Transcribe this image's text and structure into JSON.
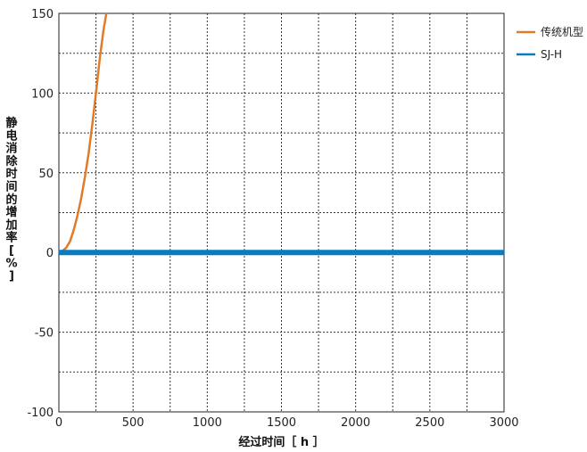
{
  "chart_data": {
    "type": "line",
    "title": "",
    "xlabel": "经过时间［ h ］",
    "ylabel": "静电消除时间的增加率[%]",
    "xlim": [
      0,
      3000
    ],
    "ylim": [
      -100,
      150
    ],
    "x_ticks": [
      "0",
      "500",
      "1000",
      "1500",
      "2000",
      "2500",
      "3000"
    ],
    "y_ticks": [
      "150",
      "100",
      "50",
      "0",
      "-50",
      "-100"
    ],
    "grid": true,
    "legend_position": "top-right",
    "series": [
      {
        "name": "传统机型",
        "color": "#e07b2a",
        "x": [
          0,
          25,
          50,
          75,
          100,
          125,
          150,
          175,
          200,
          225,
          250,
          275,
          300,
          320
        ],
        "y": [
          0,
          1,
          3,
          7,
          14,
          23,
          34,
          47,
          62,
          80,
          100,
          121,
          139,
          150
        ]
      },
      {
        "name": "SJ-H",
        "color": "#0a7bbd",
        "x": [
          0,
          500,
          1000,
          1500,
          2000,
          2500,
          3000
        ],
        "y": [
          0,
          0,
          0,
          0,
          0,
          0,
          0
        ]
      }
    ]
  }
}
